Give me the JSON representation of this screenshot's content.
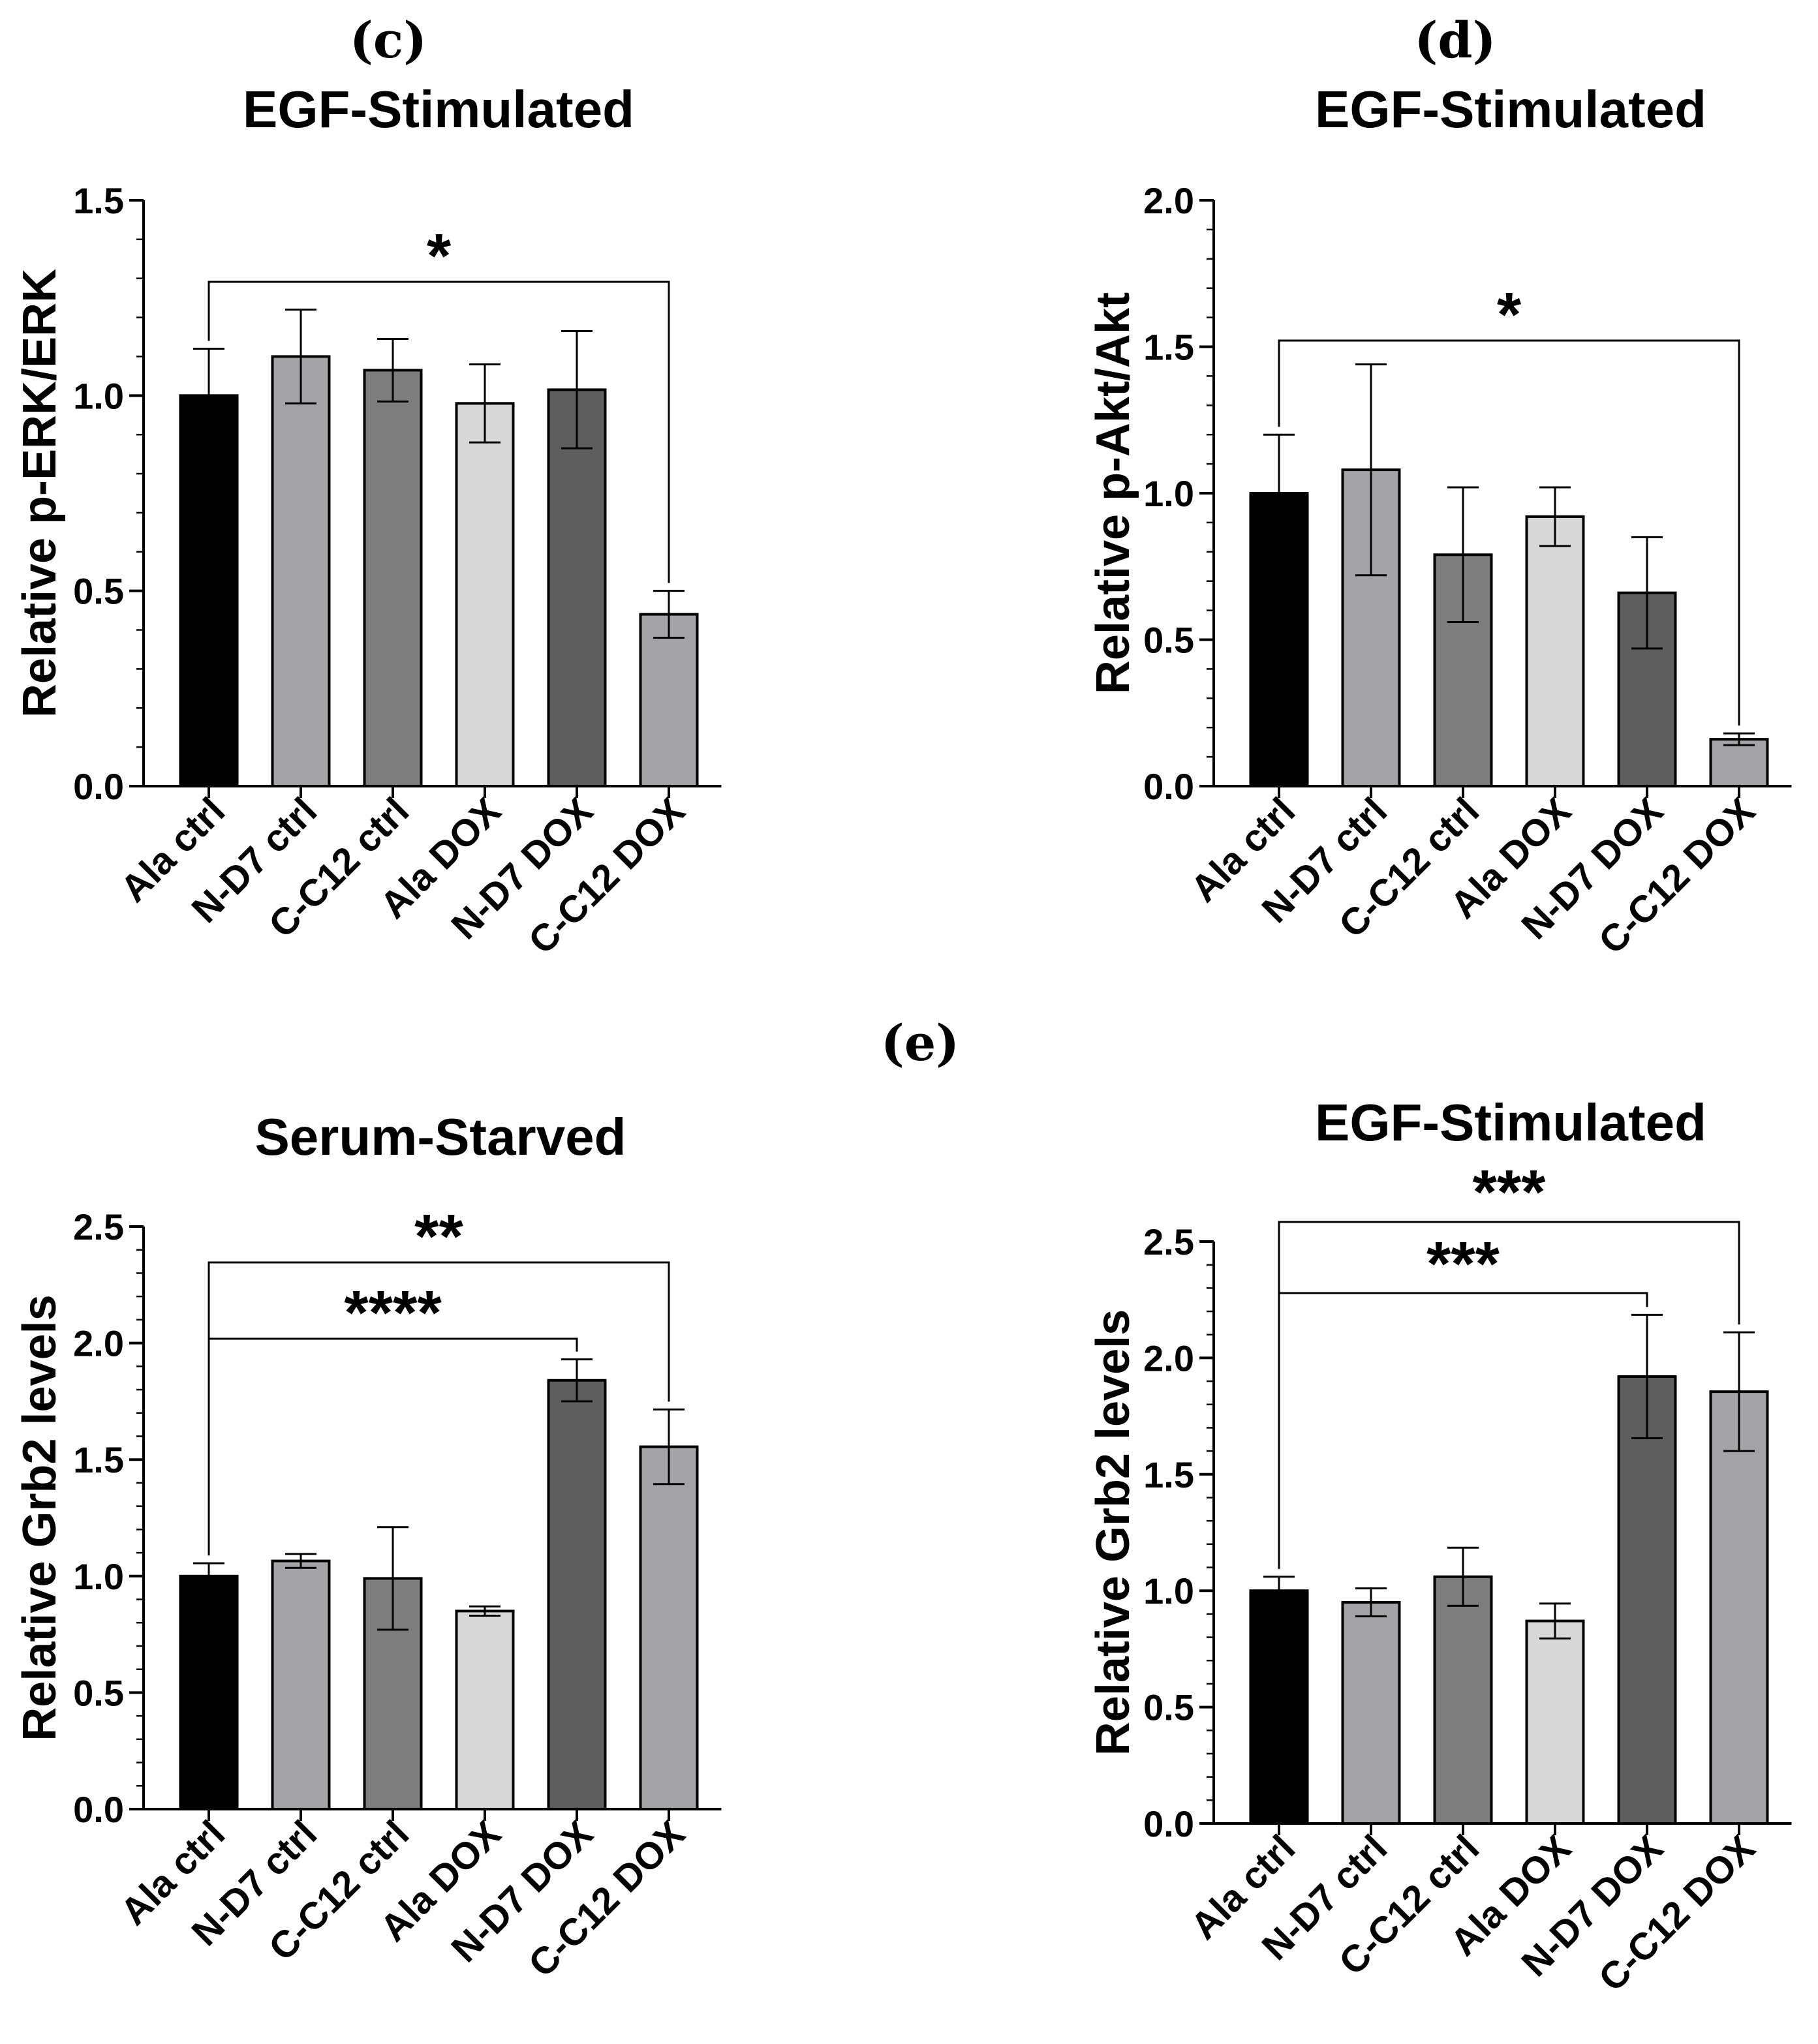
{
  "panel_labels": {
    "c": "(c)",
    "d": "(d)",
    "e": "(e)"
  },
  "chart_data": [
    {
      "type": "bar",
      "title": "EGF-Stimulated",
      "ylabel": "Relative p-ERK/ERK",
      "ylim": [
        0,
        1.5
      ],
      "yticks": [
        "0.0",
        "0.5",
        "1.0",
        "1.5"
      ],
      "categories": [
        "Ala ctrl",
        "N-D7 ctrl",
        "C-C12 ctrl",
        "Ala DOX",
        "N-D7 DOX",
        "C-C12 DOX"
      ],
      "values": [
        1.0,
        1.1,
        1.065,
        0.98,
        1.015,
        0.44
      ],
      "errors": [
        0.12,
        0.12,
        0.08,
        0.1,
        0.15,
        0.06
      ],
      "bar_colors": [
        "#000000",
        "#a4a4a8",
        "#7d7d7d",
        "#d8d8d8",
        "#5e5e5e",
        "#a4a4a8"
      ],
      "significance": [
        {
          "from": "Ala ctrl",
          "to": "C-C12 DOX",
          "label": "*"
        }
      ]
    },
    {
      "type": "bar",
      "title": "EGF-Stimulated",
      "ylabel": "Relative p-Akt/Akt",
      "ylim": [
        0,
        2.0
      ],
      "yticks": [
        "0.0",
        "0.5",
        "1.0",
        "1.5",
        "2.0"
      ],
      "categories": [
        "Ala ctrl",
        "N-D7 ctrl",
        "C-C12 ctrl",
        "Ala DOX",
        "N-D7 DOX",
        "C-C12 DOX"
      ],
      "values": [
        1.0,
        1.08,
        0.79,
        0.92,
        0.66,
        0.16
      ],
      "errors": [
        0.2,
        0.36,
        0.23,
        0.1,
        0.19,
        0.02
      ],
      "bar_colors": [
        "#000000",
        "#a4a4a8",
        "#7d7d7d",
        "#d8d8d8",
        "#5e5e5e",
        "#a4a4a8"
      ],
      "significance": [
        {
          "from": "Ala ctrl",
          "to": "C-C12 DOX",
          "label": "*"
        }
      ]
    },
    {
      "type": "bar",
      "title": "Serum-Starved",
      "ylabel": "Relative Grb2 levels",
      "ylim": [
        0,
        2.5
      ],
      "yticks": [
        "0.0",
        "0.5",
        "1.0",
        "1.5",
        "2.0",
        "2.5"
      ],
      "categories": [
        "Ala ctrl",
        "N-D7 ctrl",
        "C-C12 ctrl",
        "Ala DOX",
        "N-D7 DOX",
        "C-C12 DOX"
      ],
      "values": [
        1.0,
        1.065,
        0.99,
        0.85,
        1.84,
        1.555
      ],
      "errors": [
        0.055,
        0.03,
        0.22,
        0.02,
        0.09,
        0.16
      ],
      "bar_colors": [
        "#000000",
        "#a4a4a8",
        "#7d7d7d",
        "#d8d8d8",
        "#5e5e5e",
        "#a4a4a8"
      ],
      "significance": [
        {
          "from": "Ala ctrl",
          "to": "C-C12 DOX",
          "label": "**"
        },
        {
          "from": "Ala ctrl",
          "to": "N-D7 DOX",
          "label": "****"
        }
      ]
    },
    {
      "type": "bar",
      "title": "EGF-Stimulated",
      "ylabel": "Relative Grb2 levels",
      "ylim": [
        0,
        2.5
      ],
      "yticks": [
        "0.0",
        "0.5",
        "1.0",
        "1.5",
        "2.0",
        "2.5"
      ],
      "categories": [
        "Ala ctrl",
        "N-D7 ctrl",
        "C-C12 ctrl",
        "Ala DOX",
        "N-D7 DOX",
        "C-C12 DOX"
      ],
      "values": [
        1.0,
        0.95,
        1.06,
        0.87,
        1.92,
        1.855
      ],
      "errors": [
        0.06,
        0.06,
        0.125,
        0.075,
        0.265,
        0.255
      ],
      "bar_colors": [
        "#000000",
        "#a4a4a8",
        "#7d7d7d",
        "#d8d8d8",
        "#5e5e5e",
        "#a4a4a8"
      ],
      "significance": [
        {
          "from": "Ala ctrl",
          "to": "C-C12 DOX",
          "label": "***"
        },
        {
          "from": "Ala ctrl",
          "to": "N-D7 DOX",
          "label": "***"
        }
      ]
    }
  ]
}
